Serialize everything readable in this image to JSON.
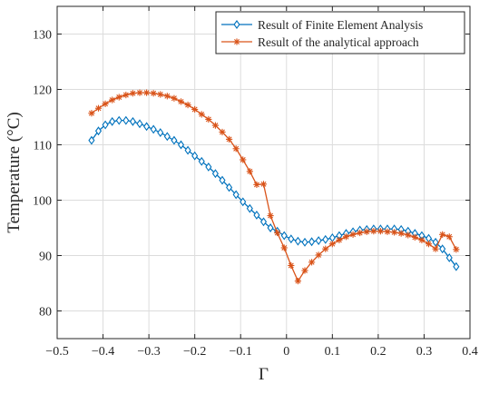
{
  "chart_data": {
    "type": "line",
    "xlabel": "Γ",
    "ylabel": "Temperature (°C)",
    "xlim": [
      -0.5,
      0.4
    ],
    "ylim": [
      75,
      135
    ],
    "xticks": [
      -0.5,
      -0.4,
      -0.3,
      -0.2,
      -0.1,
      0,
      0.1,
      0.2,
      0.3,
      0.4
    ],
    "xtick_labels": [
      "−0.5",
      "−0.4",
      "−0.3",
      "−0.2",
      "−0.1",
      "0",
      "0.1",
      "0.2",
      "0.3",
      "0.4"
    ],
    "yticks": [
      80,
      90,
      100,
      110,
      120,
      130
    ],
    "ytick_labels": [
      "80",
      "90",
      "100",
      "110",
      "120",
      "130"
    ],
    "grid": true,
    "legend_position": "top-right",
    "series": [
      {
        "name": "Result of Finite Element Analysis",
        "color": "#0072BD",
        "marker": "diamond",
        "x": [
          -0.425,
          -0.41,
          -0.395,
          -0.38,
          -0.365,
          -0.35,
          -0.335,
          -0.32,
          -0.305,
          -0.29,
          -0.275,
          -0.26,
          -0.245,
          -0.23,
          -0.215,
          -0.2,
          -0.185,
          -0.17,
          -0.155,
          -0.14,
          -0.125,
          -0.11,
          -0.095,
          -0.08,
          -0.065,
          -0.05,
          -0.035,
          -0.02,
          -0.005,
          0.01,
          0.025,
          0.04,
          0.055,
          0.07,
          0.085,
          0.1,
          0.115,
          0.13,
          0.145,
          0.16,
          0.175,
          0.19,
          0.205,
          0.22,
          0.235,
          0.25,
          0.265,
          0.28,
          0.295,
          0.31,
          0.325,
          0.34,
          0.355,
          0.37
        ],
        "y": [
          110.8,
          112.5,
          113.6,
          114.2,
          114.4,
          114.4,
          114.2,
          113.8,
          113.3,
          112.8,
          112.2,
          111.5,
          110.8,
          110.0,
          109.0,
          108.0,
          107.0,
          106.0,
          104.8,
          103.6,
          102.3,
          101.0,
          99.7,
          98.5,
          97.3,
          96.1,
          95.0,
          94.4,
          93.6,
          93.0,
          92.6,
          92.4,
          92.5,
          92.7,
          92.9,
          93.2,
          93.6,
          94.0,
          94.3,
          94.6,
          94.7,
          94.8,
          94.8,
          94.8,
          94.8,
          94.7,
          94.4,
          94.0,
          93.6,
          93.1,
          92.4,
          91.2,
          89.6,
          88.0
        ]
      },
      {
        "name": "Result of the analytical approach",
        "color": "#D95319",
        "marker": "asterisk",
        "x": [
          -0.425,
          -0.41,
          -0.395,
          -0.38,
          -0.365,
          -0.35,
          -0.335,
          -0.32,
          -0.305,
          -0.29,
          -0.275,
          -0.26,
          -0.245,
          -0.23,
          -0.215,
          -0.2,
          -0.185,
          -0.17,
          -0.155,
          -0.14,
          -0.125,
          -0.11,
          -0.095,
          -0.08,
          -0.065,
          -0.05,
          -0.035,
          -0.02,
          -0.005,
          0.01,
          0.025,
          0.04,
          0.055,
          0.07,
          0.085,
          0.1,
          0.115,
          0.13,
          0.145,
          0.16,
          0.175,
          0.19,
          0.205,
          0.22,
          0.235,
          0.25,
          0.265,
          0.28,
          0.295,
          0.31,
          0.325,
          0.34,
          0.355,
          0.37
        ],
        "y": [
          115.7,
          116.6,
          117.4,
          118.1,
          118.6,
          119.0,
          119.3,
          119.4,
          119.4,
          119.3,
          119.1,
          118.8,
          118.4,
          117.8,
          117.2,
          116.4,
          115.5,
          114.6,
          113.5,
          112.3,
          111.0,
          109.3,
          107.3,
          105.2,
          102.8,
          102.9,
          97.2,
          94.1,
          91.4,
          88.2,
          85.4,
          87.3,
          88.8,
          90.1,
          91.2,
          92.1,
          92.8,
          93.4,
          93.8,
          94.1,
          94.3,
          94.4,
          94.4,
          94.3,
          94.2,
          94.0,
          93.7,
          93.3,
          92.8,
          92.1,
          91.2,
          93.8,
          93.4,
          91.1
        ]
      }
    ]
  }
}
